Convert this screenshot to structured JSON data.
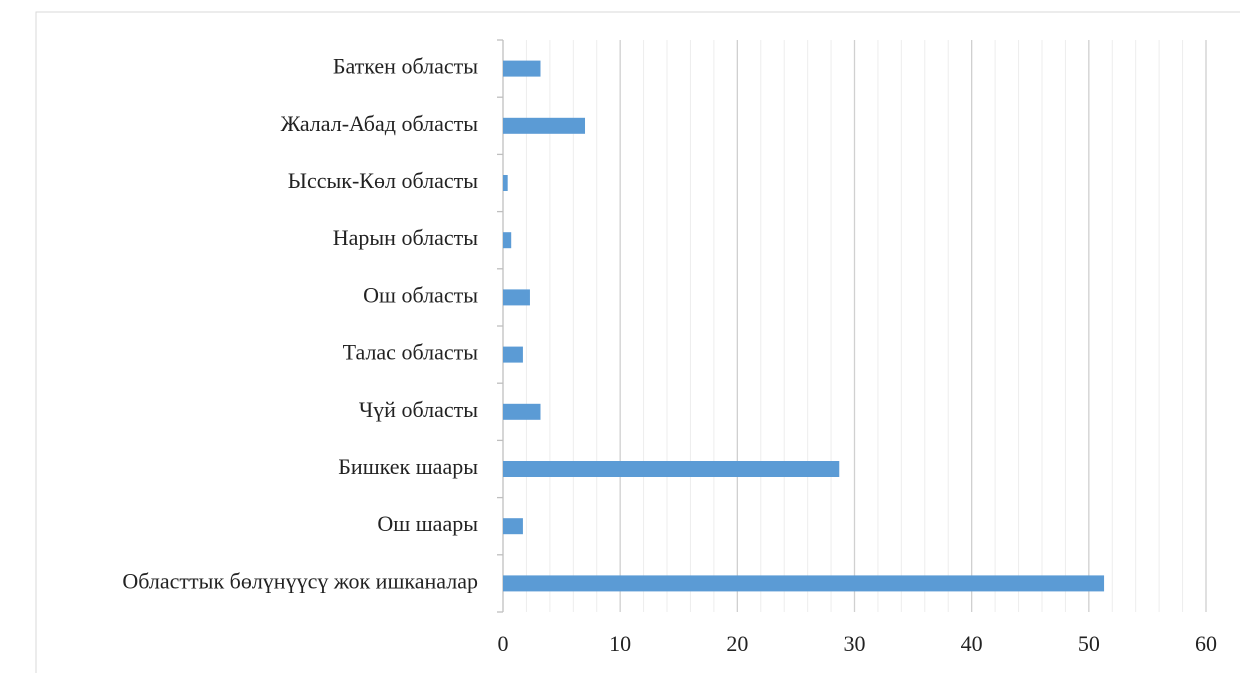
{
  "chart_data": {
    "type": "bar",
    "orientation": "horizontal",
    "categories": [
      "Баткен областы",
      "Жалал-Абад областы",
      "Ыссык-Көл областы",
      "Нарын областы",
      "Ош областы",
      "Талас областы",
      "Чүй областы",
      "Бишкек шаары",
      "Ош шаары",
      "Областтык бөлүнүүсү жок ишканалар"
    ],
    "values": [
      3.2,
      7.0,
      0.4,
      0.7,
      2.3,
      1.7,
      3.2,
      28.7,
      1.7,
      51.3
    ],
    "color": "#5b9bd5",
    "xlim": [
      0,
      60
    ],
    "xticks": [
      0,
      10,
      20,
      30,
      40,
      50,
      60
    ],
    "minor_xticks": [
      2,
      4,
      6,
      8,
      12,
      14,
      16,
      18,
      22,
      24,
      26,
      28,
      32,
      34,
      36,
      38,
      42,
      44,
      46,
      48,
      52,
      54,
      56,
      58
    ],
    "grid": true
  }
}
